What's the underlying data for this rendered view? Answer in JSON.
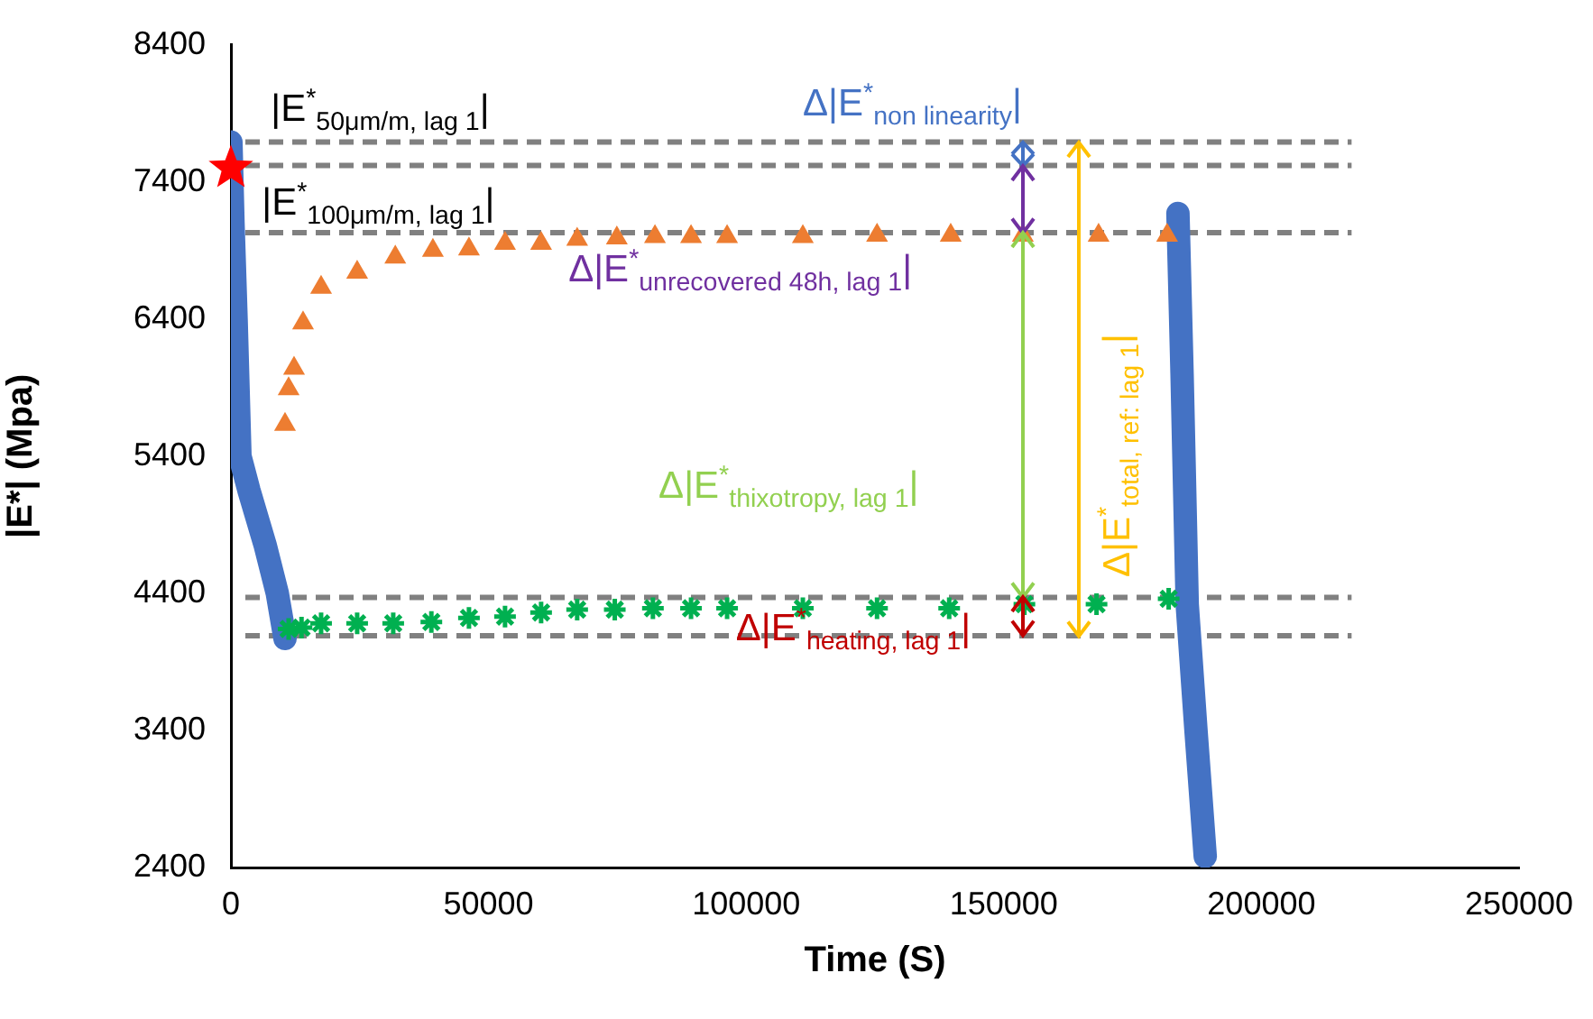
{
  "chart_data": {
    "type": "scatter",
    "xlabel": "Time (S)",
    "ylabel": "|E*| (Mpa)",
    "xlim": [
      0,
      250000
    ],
    "xticks": [
      0,
      50000,
      100000,
      150000,
      200000,
      250000
    ],
    "ylim": [
      2400,
      8400
    ],
    "yticks": [
      2400,
      3400,
      4400,
      5400,
      6400,
      7400,
      8400
    ],
    "grid": false,
    "legend": false,
    "series": [
      {
        "type": "line",
        "color": "#4472c4",
        "marker": "none",
        "x": [
          0,
          400,
          1000,
          1750,
          3500,
          6650,
          9000,
          10500
        ],
        "values": [
          7690,
          7100,
          6400,
          5400,
          5150,
          4750,
          4400,
          4070
        ]
      },
      {
        "type": "line",
        "color": "#4472c4",
        "marker": "none",
        "x": [
          183800,
          184600,
          185600,
          187300,
          189100
        ],
        "values": [
          7170,
          6000,
          4320,
          3400,
          2480
        ]
      },
      {
        "color": "#ed7d31",
        "marker": "triangle",
        "x": [
          10500,
          11200,
          12250,
          14000,
          17500,
          24500,
          31900,
          39200,
          46200,
          53200,
          60200,
          67200,
          74900,
          82300,
          89300,
          96300,
          111000,
          125400,
          139700,
          153700,
          168400,
          181700
        ],
        "values": [
          5630,
          5890,
          6040,
          6370,
          6630,
          6740,
          6850,
          6900,
          6910,
          6950,
          6950,
          6980,
          6990,
          7000,
          7000,
          7000,
          7000,
          7010,
          7010,
          7010,
          7010,
          7010
        ]
      },
      {
        "color": "#00b050",
        "marker": "cross",
        "x": [
          11200,
          13700,
          17500,
          24500,
          31500,
          38900,
          46200,
          53200,
          60200,
          67200,
          74500,
          81900,
          89300,
          96300,
          111000,
          125400,
          139400,
          154000,
          168000,
          182000
        ],
        "values": [
          4140,
          4150,
          4180,
          4180,
          4180,
          4190,
          4220,
          4230,
          4260,
          4280,
          4280,
          4290,
          4290,
          4290,
          4290,
          4290,
          4290,
          4320,
          4320,
          4360
        ]
      },
      {
        "color": "#ff0000",
        "marker": "star",
        "x": [
          0
        ],
        "values": [
          7500
        ]
      }
    ],
    "ref_lines": [
      {
        "axis": "y",
        "value": 7690,
        "color": "#808080",
        "line_style": "dashed"
      },
      {
        "axis": "y",
        "value": 7520,
        "color": "#808080",
        "line_style": "dashed"
      },
      {
        "axis": "y",
        "value": 7030,
        "color": "#808080",
        "line_style": "dashed"
      },
      {
        "axis": "y",
        "value": 4370,
        "color": "#808080",
        "line_style": "dashed"
      },
      {
        "axis": "y",
        "value": 4090,
        "color": "#808080",
        "line_style": "dashed"
      }
    ],
    "annotations": [
      "|E$^{*}$$_{50μm/m, lag 1}$|",
      "|E$^{*}$$_{100μm/m, lag 1}$|",
      "Δ|E$^{*}$$_{non linearity}$|",
      "Δ|E$^{*}$$_{unrecovered 48h, lag 1}$|",
      "Δ|E$^{*}$$_{thixotropy, lag 1}$|",
      "Δ|E$^{*}$$_{heating, lag 1}$|",
      "Δ|E$^{*}$$_{total, ref: lag 1}$|"
    ]
  }
}
